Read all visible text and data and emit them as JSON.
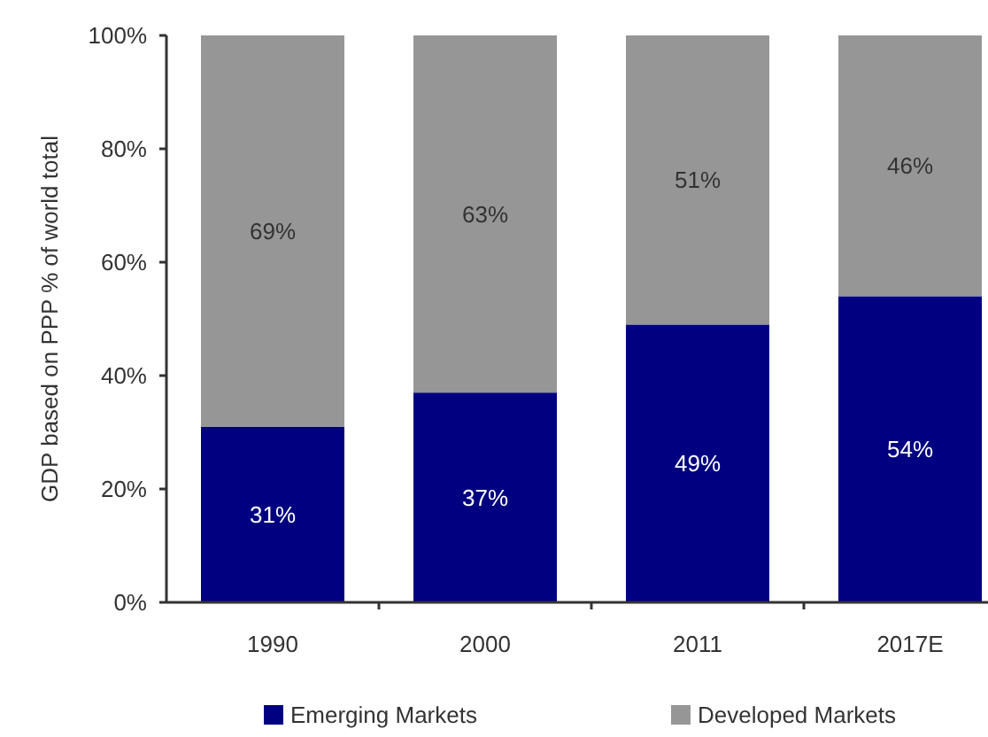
{
  "chart_data": {
    "type": "bar",
    "stacked": true,
    "ylabel": "GDP based on PPP % of world total",
    "categories": [
      "1990",
      "2000",
      "2011",
      "2017E"
    ],
    "series": [
      {
        "name": "Emerging Markets",
        "color": "#000080",
        "values": [
          31,
          37,
          49,
          54
        ],
        "value_labels": [
          "31%",
          "37%",
          "49%",
          "54%"
        ]
      },
      {
        "name": "Developed Markets",
        "color": "#969696",
        "values": [
          69,
          63,
          51,
          46
        ],
        "value_labels": [
          "69%",
          "63%",
          "51%",
          "46%"
        ]
      }
    ],
    "ylim": [
      0,
      100
    ],
    "yticks": [
      {
        "value": 0,
        "label": "0%"
      },
      {
        "value": 20,
        "label": "20%"
      },
      {
        "value": 40,
        "label": "40%"
      },
      {
        "value": 60,
        "label": "60%"
      },
      {
        "value": 80,
        "label": "80%"
      },
      {
        "value": 100,
        "label": "100%"
      }
    ],
    "legend": "bottom"
  }
}
